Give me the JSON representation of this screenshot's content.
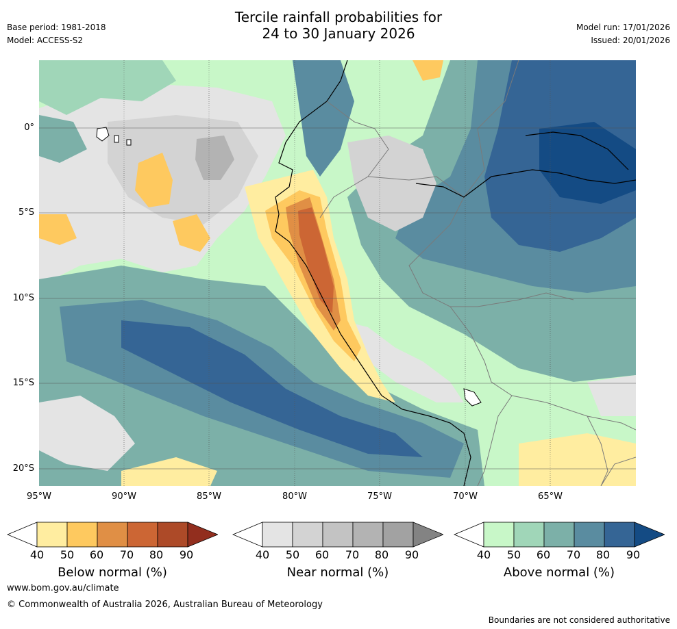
{
  "header": {
    "title_line1": "Tercile rainfall probabilities for",
    "title_line2": "24 to 30 January 2026",
    "base_period": "Base period: 1981-2018",
    "model": "Model: ACCESS-S2",
    "model_run": "Model run: 17/01/2026",
    "issued": "Issued: 20/01/2026"
  },
  "axes": {
    "lat_labels": [
      "0°",
      "5°S",
      "10°S",
      "15°S",
      "20°S"
    ],
    "lon_labels": [
      "95°W",
      "90°W",
      "85°W",
      "80°W",
      "75°W",
      "70°W",
      "65°W"
    ]
  },
  "legends": {
    "ticks": [
      "40",
      "50",
      "60",
      "70",
      "80",
      "90"
    ],
    "below": {
      "title": "Below normal (%)",
      "colors": [
        "#ffffff",
        "#ffeda0",
        "#fec95f",
        "#e08f45",
        "#cc6634",
        "#ad4a28",
        "#922e1e"
      ]
    },
    "near": {
      "title": "Near normal (%)",
      "colors": [
        "#ffffff",
        "#e4e4e4",
        "#d3d3d3",
        "#c3c3c3",
        "#b3b3b3",
        "#a2a2a2",
        "#838383"
      ]
    },
    "above": {
      "title": "Above normal (%)",
      "colors": [
        "#ffffff",
        "#c8f7c8",
        "#a0d6b8",
        "#7cb0a8",
        "#5a8ca0",
        "#356595",
        "#144b84"
      ]
    }
  },
  "footer": {
    "url": "www.bom.gov.au/climate",
    "copyright": "© Commonwealth of Australia 2026, Australian Bureau of Meteorology",
    "disclaimer": "Boundaries are not considered authoritative"
  }
}
